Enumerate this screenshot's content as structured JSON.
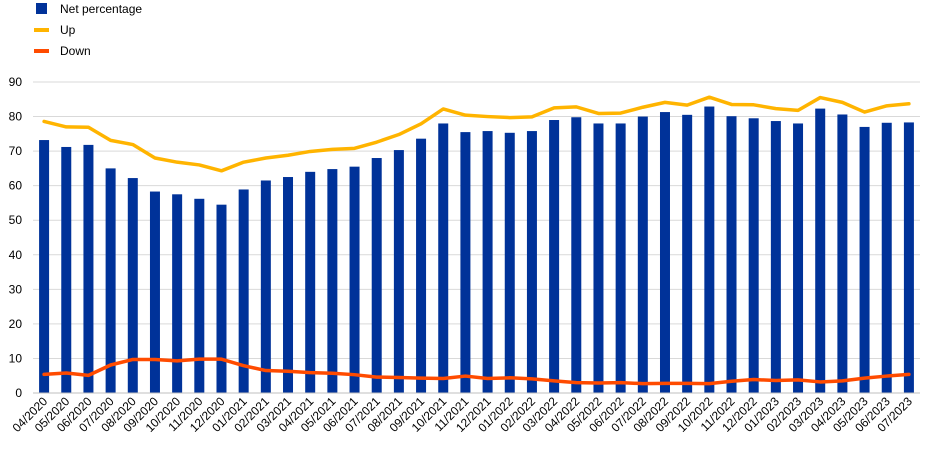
{
  "chart_data": {
    "type": "bar",
    "categories": [
      "04/2020",
      "05/2020",
      "06/2020",
      "07/2020",
      "08/2020",
      "09/2020",
      "10/2020",
      "11/2020",
      "12/2020",
      "01/2021",
      "02/2021",
      "03/2021",
      "04/2021",
      "05/2021",
      "06/2021",
      "07/2021",
      "08/2021",
      "09/2021",
      "10/2021",
      "11/2021",
      "12/2021",
      "01/2022",
      "02/2022",
      "03/2022",
      "04/2022",
      "05/2022",
      "06/2022",
      "07/2022",
      "08/2022",
      "09/2022",
      "10/2022",
      "11/2022",
      "12/2022",
      "01/2023",
      "02/2023",
      "03/2023",
      "04/2023",
      "05/2023",
      "06/2023",
      "07/2023"
    ],
    "series": [
      {
        "name": "Net percentage",
        "type": "bar",
        "color": "#003299",
        "values": [
          73.2,
          71.2,
          71.8,
          65.0,
          62.2,
          58.3,
          57.5,
          56.2,
          54.5,
          58.9,
          61.5,
          62.5,
          64.0,
          64.8,
          65.5,
          68.0,
          70.3,
          73.6,
          78.0,
          75.5,
          75.8,
          75.3,
          75.8,
          79.0,
          79.8,
          78.0,
          78.0,
          80.0,
          81.3,
          80.5,
          82.9,
          80.1,
          79.5,
          78.7,
          78.0,
          82.3,
          80.6,
          77.0,
          78.2,
          78.3
        ]
      },
      {
        "name": "Up",
        "type": "line",
        "color": "#FFB400",
        "values": [
          78.6,
          77.0,
          76.9,
          73.1,
          71.9,
          68.0,
          66.8,
          66.0,
          64.3,
          66.8,
          68.0,
          68.8,
          69.9,
          70.5,
          70.8,
          72.6,
          74.8,
          77.9,
          82.2,
          80.4,
          80.0,
          79.7,
          79.9,
          82.5,
          82.8,
          80.9,
          81.0,
          82.7,
          84.1,
          83.3,
          85.6,
          83.5,
          83.4,
          82.3,
          81.8,
          85.5,
          84.1,
          81.3,
          83.1,
          83.7
        ]
      },
      {
        "name": "Down",
        "type": "line",
        "color": "#FF4B00",
        "values": [
          5.4,
          5.8,
          5.1,
          8.1,
          9.7,
          9.7,
          9.3,
          9.8,
          9.8,
          7.9,
          6.5,
          6.3,
          5.9,
          5.7,
          5.3,
          4.6,
          4.5,
          4.3,
          4.2,
          4.9,
          4.2,
          4.4,
          4.1,
          3.5,
          3.0,
          2.9,
          3.0,
          2.7,
          2.8,
          2.8,
          2.7,
          3.4,
          3.9,
          3.6,
          3.8,
          3.2,
          3.5,
          4.3,
          4.9,
          5.4
        ]
      }
    ],
    "title": "",
    "xlabel": "",
    "ylabel": "",
    "ylim": [
      0,
      90
    ],
    "yticks": [
      "0",
      "10",
      "20",
      "30",
      "40",
      "50",
      "60",
      "70",
      "80",
      "90"
    ],
    "grid": true,
    "legend_position": "top-left",
    "legend": [
      {
        "label": "Net percentage",
        "marker": "square",
        "color": "#003299"
      },
      {
        "label": "Up",
        "marker": "line",
        "color": "#FFB400"
      },
      {
        "label": "Down",
        "marker": "line",
        "color": "#FF4B00"
      }
    ],
    "gridline_color": "#d9d9d9"
  }
}
